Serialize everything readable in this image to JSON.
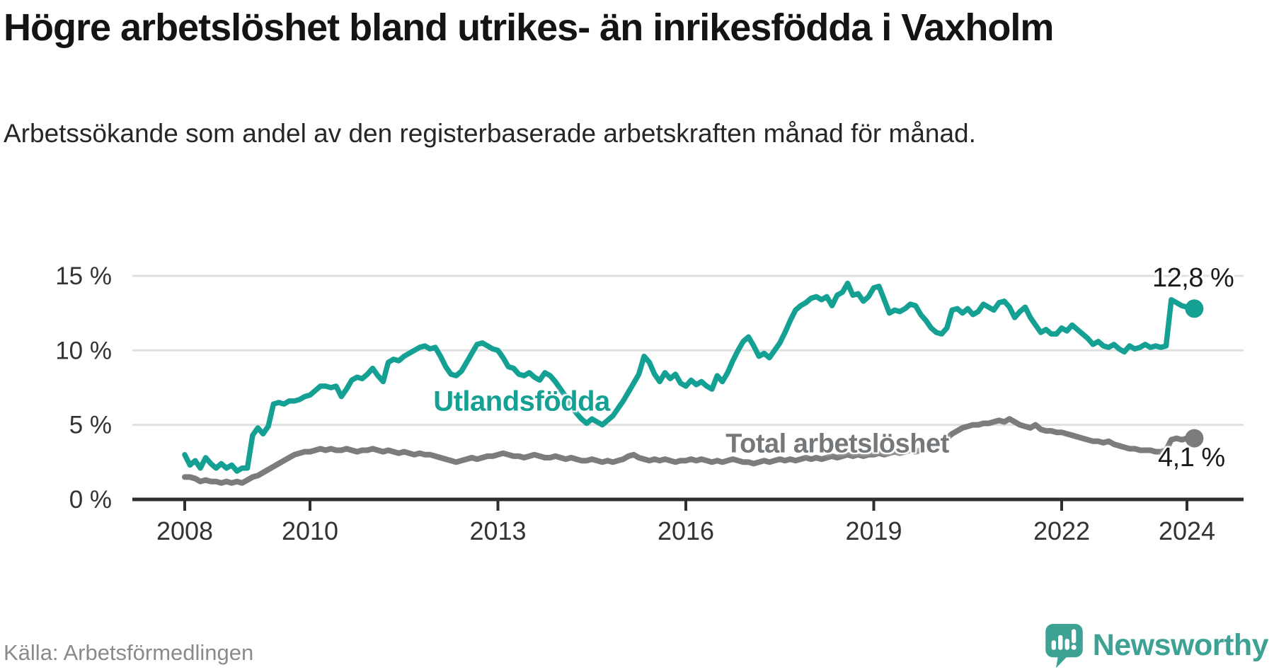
{
  "chart_data": {
    "type": "line",
    "title": "Högre arbetslöshet bland utrikes- än inrikesfödda i Vaxholm",
    "subtitle": "Arbetssökande som andel av den registerbaserade arbetskraften månad för månad.",
    "source": "Källa: Arbetsförmedlingen",
    "x_start": "2008-01",
    "x_frequency": "monthly",
    "xlim": [
      "2008-01",
      "2024-02"
    ],
    "ylim": [
      0,
      15
    ],
    "grid": "horizontal",
    "legend_position": "inline-labels",
    "yticks": [
      {
        "value": 15,
        "label": "15 %"
      },
      {
        "value": 10,
        "label": "10 %"
      },
      {
        "value": 5,
        "label": "5 %"
      },
      {
        "value": 0,
        "label": "0 %"
      }
    ],
    "xticks": [
      {
        "year": 2008,
        "label": "2008"
      },
      {
        "year": 2010,
        "label": "2010"
      },
      {
        "year": 2013,
        "label": "2013"
      },
      {
        "year": 2016,
        "label": "2016"
      },
      {
        "year": 2019,
        "label": "2019"
      },
      {
        "year": 2022,
        "label": "2022"
      },
      {
        "year": 2024,
        "label": "2024"
      }
    ],
    "series": [
      {
        "name": "Utlandsfödda",
        "color": "#14a093",
        "end_label": "12,8 %",
        "end_value": 12.8,
        "values": [
          3.0,
          2.3,
          2.6,
          2.1,
          2.8,
          2.4,
          2.1,
          2.4,
          2.1,
          2.3,
          1.9,
          2.1,
          2.1,
          4.3,
          4.8,
          4.4,
          4.9,
          6.4,
          6.5,
          6.4,
          6.6,
          6.6,
          6.7,
          6.9,
          7.0,
          7.3,
          7.6,
          7.6,
          7.5,
          7.6,
          6.9,
          7.4,
          8.0,
          8.2,
          8.1,
          8.4,
          8.8,
          8.3,
          7.9,
          9.2,
          9.4,
          9.3,
          9.6,
          9.8,
          10.0,
          10.2,
          10.3,
          10.1,
          10.2,
          9.6,
          8.9,
          8.4,
          8.3,
          8.6,
          9.2,
          9.8,
          10.4,
          10.5,
          10.3,
          10.1,
          10.0,
          9.5,
          8.9,
          8.8,
          8.4,
          8.3,
          8.5,
          8.2,
          8.0,
          8.5,
          8.3,
          7.9,
          7.4,
          6.9,
          6.3,
          5.8,
          5.4,
          5.1,
          5.4,
          5.2,
          5.0,
          5.3,
          5.6,
          6.1,
          6.6,
          7.2,
          7.8,
          8.4,
          9.6,
          9.2,
          8.4,
          7.9,
          8.5,
          8.1,
          8.4,
          7.8,
          7.6,
          8.0,
          7.7,
          7.9,
          7.6,
          7.4,
          8.3,
          7.9,
          8.5,
          9.3,
          10.0,
          10.6,
          10.9,
          10.3,
          9.6,
          9.8,
          9.5,
          10.0,
          10.5,
          11.2,
          12.0,
          12.7,
          13.0,
          13.2,
          13.5,
          13.6,
          13.4,
          13.6,
          13.0,
          13.7,
          13.9,
          14.5,
          13.7,
          13.8,
          13.3,
          13.6,
          14.2,
          14.3,
          13.4,
          12.5,
          12.7,
          12.6,
          12.8,
          13.1,
          13.0,
          12.4,
          12.0,
          11.5,
          11.2,
          11.1,
          11.5,
          12.7,
          12.8,
          12.5,
          12.8,
          12.4,
          12.6,
          13.1,
          12.9,
          12.7,
          13.2,
          13.3,
          12.9,
          12.2,
          12.6,
          12.9,
          12.2,
          11.7,
          11.2,
          11.4,
          11.1,
          11.1,
          11.5,
          11.3,
          11.7,
          11.4,
          11.1,
          10.8,
          10.4,
          10.6,
          10.3,
          10.2,
          10.4,
          10.1,
          9.9,
          10.3,
          10.1,
          10.2,
          10.4,
          10.2,
          10.3,
          10.2,
          10.3,
          13.4,
          13.2,
          13.0,
          12.9,
          12.8
        ]
      },
      {
        "name": "Total arbetslöshet",
        "color": "#7c7c7c",
        "label_color": "#75787b",
        "end_label": "4,1 %",
        "end_value": 4.1,
        "values": [
          1.5,
          1.5,
          1.4,
          1.2,
          1.3,
          1.2,
          1.2,
          1.1,
          1.2,
          1.1,
          1.2,
          1.1,
          1.3,
          1.5,
          1.6,
          1.8,
          2.0,
          2.2,
          2.4,
          2.6,
          2.8,
          3.0,
          3.1,
          3.2,
          3.2,
          3.3,
          3.4,
          3.3,
          3.4,
          3.3,
          3.3,
          3.4,
          3.3,
          3.2,
          3.3,
          3.3,
          3.4,
          3.3,
          3.2,
          3.3,
          3.2,
          3.1,
          3.2,
          3.1,
          3.0,
          3.1,
          3.0,
          3.0,
          2.9,
          2.8,
          2.7,
          2.6,
          2.5,
          2.6,
          2.7,
          2.8,
          2.7,
          2.8,
          2.9,
          2.9,
          3.0,
          3.1,
          3.0,
          2.9,
          2.9,
          2.8,
          2.9,
          3.0,
          2.9,
          2.8,
          2.8,
          2.9,
          2.8,
          2.7,
          2.8,
          2.7,
          2.6,
          2.6,
          2.7,
          2.6,
          2.5,
          2.6,
          2.5,
          2.6,
          2.7,
          2.9,
          3.0,
          2.8,
          2.7,
          2.6,
          2.7,
          2.6,
          2.7,
          2.6,
          2.5,
          2.6,
          2.6,
          2.7,
          2.6,
          2.7,
          2.6,
          2.5,
          2.6,
          2.5,
          2.6,
          2.7,
          2.6,
          2.5,
          2.5,
          2.4,
          2.5,
          2.6,
          2.5,
          2.6,
          2.7,
          2.6,
          2.7,
          2.6,
          2.7,
          2.8,
          2.7,
          2.8,
          2.7,
          2.8,
          2.9,
          2.8,
          2.9,
          3.0,
          2.9,
          3.0,
          2.9,
          3.0,
          3.0,
          3.1,
          3.0,
          3.1,
          3.2,
          3.1,
          3.2,
          3.3,
          3.2,
          3.3,
          3.4,
          3.5,
          3.7,
          3.9,
          4.1,
          4.4,
          4.6,
          4.8,
          4.9,
          5.0,
          5.0,
          5.1,
          5.1,
          5.2,
          5.3,
          5.2,
          5.4,
          5.2,
          5.0,
          4.9,
          4.8,
          5.0,
          4.7,
          4.6,
          4.6,
          4.5,
          4.5,
          4.4,
          4.3,
          4.2,
          4.1,
          4.0,
          3.9,
          3.9,
          3.8,
          3.9,
          3.7,
          3.6,
          3.5,
          3.4,
          3.4,
          3.3,
          3.3,
          3.3,
          3.2,
          3.2,
          3.3,
          4.0,
          4.1,
          4.0,
          4.1,
          4.1
        ]
      }
    ]
  },
  "brand": {
    "name": "Newsworthy",
    "icon": "newsworthy-logo",
    "color": "#3da294"
  },
  "colors": {
    "background": "#ffffff",
    "grid": "#e0e0e0",
    "axis": "#2e2e2e",
    "tick_text": "#333333",
    "title_text": "#141414",
    "subtitle_text": "#262626",
    "source_text": "#8a8a8a",
    "value_label_text": "#1a1a1a"
  }
}
